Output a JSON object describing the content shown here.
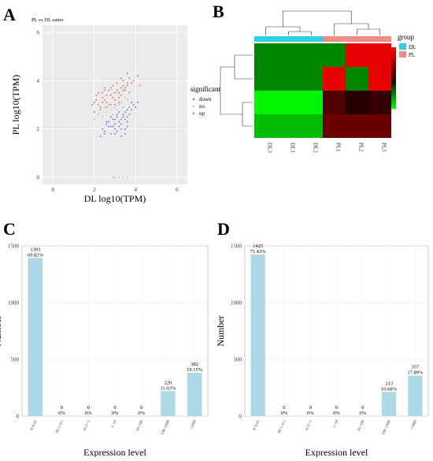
{
  "panels": [
    "A",
    "B",
    "C",
    "D"
  ],
  "chart_data": [
    {
      "panel": "A",
      "type": "scatter",
      "title": "PL vs DL satter",
      "xlabel": "DL log10(TPM)",
      "ylabel": "PL log10(TPM)",
      "xlim": [
        -0.5,
        6.5
      ],
      "ylim": [
        -0.3,
        6.3
      ],
      "xticks": [
        "0",
        "2",
        "4",
        "6"
      ],
      "yticks": [
        "0",
        "2",
        "4",
        "6"
      ],
      "legend_title": "significant",
      "legend": [
        "down",
        "no",
        "up"
      ],
      "colors": {
        "down": "#5b6fd6",
        "no": "#b8b8b8",
        "up": "#e05a5a"
      },
      "series": [
        {
          "name": "up",
          "x": [
            1.9,
            2.1,
            2.2,
            2.3,
            2.4,
            2.5,
            2.6,
            2.7,
            2.8,
            2.9,
            3.0,
            3.1,
            3.2,
            3.3,
            3.4,
            3.5,
            3.6,
            3.7,
            3.8,
            2.0,
            2.2,
            2.4,
            2.6,
            2.8,
            3.0,
            3.2,
            3.4,
            3.6,
            2.3,
            2.5,
            2.7,
            2.9,
            3.1,
            3.3,
            3.5,
            2.1,
            2.6,
            3.0,
            3.4,
            3.9,
            4.1,
            2.4,
            2.8,
            3.2,
            3.6,
            2.0,
            3.7,
            4.2,
            2.5,
            3.3
          ],
          "y": [
            3.0,
            3.2,
            3.5,
            2.9,
            3.3,
            3.7,
            3.1,
            3.6,
            3.4,
            3.8,
            3.2,
            3.9,
            3.5,
            3.7,
            4.0,
            3.6,
            3.8,
            4.1,
            3.9,
            2.7,
            3.0,
            3.1,
            3.4,
            3.0,
            3.5,
            3.3,
            3.6,
            3.9,
            2.8,
            3.2,
            3.0,
            3.3,
            3.6,
            3.4,
            3.7,
            3.4,
            2.9,
            3.0,
            3.8,
            4.0,
            4.2,
            3.5,
            3.7,
            3.1,
            4.3,
            3.1,
            3.5,
            3.8,
            3.6,
            4.1
          ]
        },
        {
          "name": "down",
          "x": [
            2.4,
            2.6,
            2.8,
            3.0,
            3.2,
            3.4,
            3.6,
            3.8,
            2.7,
            2.9,
            3.1,
            3.3,
            3.5,
            3.7,
            3.9,
            2.5,
            2.8,
            3.0,
            3.2,
            3.4,
            3.6,
            3.0,
            3.3,
            3.5,
            3.7,
            2.6,
            3.1,
            3.4,
            3.8,
            4.0,
            2.9,
            3.2,
            3.6,
            2.3,
            3.5,
            4.1,
            3.0,
            3.3,
            2.7,
            3.6,
            2.5,
            2.8,
            3.1,
            3.3,
            3.5
          ],
          "y": [
            2.0,
            2.2,
            2.1,
            2.4,
            2.3,
            2.6,
            2.5,
            2.8,
            2.3,
            2.1,
            2.6,
            2.4,
            2.7,
            2.9,
            3.0,
            1.9,
            2.5,
            2.2,
            2.7,
            2.5,
            2.8,
            2.0,
            2.2,
            2.4,
            2.6,
            2.3,
            2.5,
            2.9,
            3.1,
            2.9,
            2.4,
            2.1,
            2.3,
            1.7,
            2.0,
            3.1,
            1.8,
            2.0,
            2.1,
            2.1,
            1.8,
            1.8,
            1.9,
            1.7,
            1.8
          ]
        },
        {
          "name": "no",
          "x": [
            2.2,
            2.5,
            2.8,
            3.0,
            3.2,
            3.4,
            2.6,
            2.9,
            3.1,
            3.3,
            3.6,
            2.0,
            2.4,
            2.7,
            3.5,
            2.9,
            3.0,
            3.2,
            3.4,
            3.6
          ],
          "y": [
            2.6,
            2.9,
            2.8,
            2.9,
            3.0,
            2.9,
            2.7,
            2.6,
            2.8,
            3.1,
            3.2,
            2.4,
            2.5,
            3.0,
            3.3,
            0.0,
            0.0,
            0.0,
            0.0,
            0.0
          ]
        }
      ]
    },
    {
      "panel": "B",
      "type": "heatmap",
      "columns": [
        "DL3",
        "DL1",
        "DL2",
        "PL1",
        "PL2",
        "PL3"
      ],
      "column_groups": [
        "DL",
        "DL",
        "DL",
        "PL",
        "PL",
        "PL"
      ],
      "group_colors": {
        "DL": "#2ecfe0",
        "PL": "#f08c86"
      },
      "legend_title": "group",
      "legend": [
        "DL",
        "PL"
      ],
      "scale_ticks": [
        "1.5",
        "1",
        "0.5",
        "0",
        "-0.5",
        "-1"
      ],
      "scale_range": [
        -1.2,
        1.6
      ],
      "rows": [
        [
          -0.55,
          -0.55,
          -0.55,
          -0.55,
          1.45,
          1.45
        ],
        [
          -0.55,
          -0.55,
          -0.55,
          1.45,
          -0.55,
          1.45
        ],
        [
          -1.15,
          -1.15,
          -1.15,
          0.35,
          0.05,
          0.15
        ],
        [
          -0.85,
          -0.85,
          -0.85,
          0.55,
          0.55,
          0.55
        ]
      ]
    },
    {
      "panel": "C",
      "type": "bar",
      "xlabel": "Expression level",
      "ylabel": "Number",
      "ylim": [
        0,
        1500
      ],
      "yticks": [
        "0",
        "500",
        "1000",
        "1500"
      ],
      "color": "#add8e6",
      "categories": [
        "0~0.01",
        "00.1~0.1",
        "0.11~1",
        "1~10",
        "10~100",
        "100~1000",
        ">1000"
      ],
      "values": [
        1393,
        0,
        0,
        0,
        0,
        220,
        382
      ],
      "labels_count": [
        "1393",
        "0",
        "0",
        "0",
        "0",
        "220",
        "382"
      ],
      "labels_pct": [
        "69.82%",
        "0%",
        "0%",
        "0%",
        "0%",
        "11.03%",
        "19.15%"
      ]
    },
    {
      "panel": "D",
      "type": "bar",
      "xlabel": "Expression level",
      "ylabel": "Number",
      "ylim": [
        0,
        1500
      ],
      "yticks": [
        "0",
        "500",
        "1000",
        "1500"
      ],
      "color": "#add8e6",
      "categories": [
        "0~0.01",
        "00.1~0.1",
        "0.11~1",
        "1~10",
        "10~100",
        "100~1000",
        ">1000"
      ],
      "values": [
        1425,
        0,
        0,
        0,
        0,
        213,
        357
      ],
      "labels_count": [
        "1425",
        "0",
        "0",
        "0",
        "0",
        "213",
        "357"
      ],
      "labels_pct": [
        "71.43%",
        "0%",
        "0%",
        "0%",
        "0%",
        "10.68%",
        "17.89%"
      ]
    }
  ]
}
